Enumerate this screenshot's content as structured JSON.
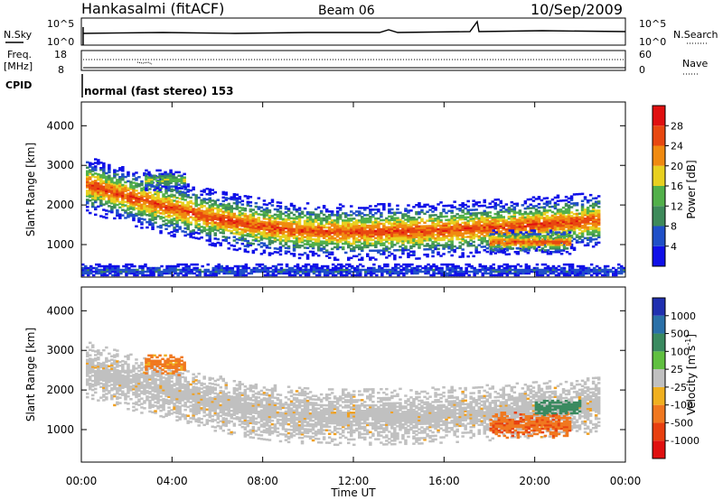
{
  "header": {
    "station": "Hankasalmi (fitACF)",
    "beam": "Beam 06",
    "date": "10/Sep/2009"
  },
  "top_panels": {
    "nsky_label": "N.Sky",
    "nsky_ticks": [
      "10^5",
      "10^0"
    ],
    "nsearch_label": "N.Search",
    "nsearch_ticks": [
      "10^5",
      "10^0"
    ],
    "freq_label_1": "Freq.",
    "freq_label_2": "[MHz]",
    "freq_ticks": [
      "18",
      "8"
    ],
    "nave_label": "Nave",
    "nave_ticks": [
      "60",
      "0"
    ],
    "cpid_label": "CPID",
    "cpid_value": "normal (fast stereo) 153"
  },
  "axes": {
    "xlabel": "Time UT",
    "x_ticks": [
      "00:00",
      "04:00",
      "08:00",
      "12:00",
      "16:00",
      "20:00",
      "00:00"
    ],
    "ylabel": "Slant Range [km]",
    "y_ticks": [
      "1000",
      "2000",
      "3000",
      "4000"
    ]
  },
  "power_colorbar": {
    "label": "Power [dB]",
    "ticks": [
      "4",
      "8",
      "12",
      "16",
      "20",
      "24",
      "28"
    ],
    "colors": [
      "#1010e8",
      "#2050c8",
      "#3e8a5a",
      "#52b04a",
      "#e8d020",
      "#f08a10",
      "#e84810",
      "#e01010"
    ]
  },
  "velocity_colorbar": {
    "label": "Velocity [m s",
    "label_sup": "-1",
    "label_end": "]",
    "ticks": [
      "1000",
      "500",
      "100",
      "25",
      "-25",
      "-100",
      "-500",
      "-1000"
    ],
    "colors": [
      "#2030b0",
      "#2a70a8",
      "#3a8a60",
      "#60c040",
      "#c0c0c0",
      "#f0b020",
      "#f07820",
      "#e84010",
      "#e01010"
    ]
  },
  "chart_data": {
    "type": "heatmap",
    "title": "Beam 06",
    "xlabel": "Time UT",
    "ylabel": "Slant Range [km]",
    "xlim": [
      0,
      24
    ],
    "ylim": [
      180,
      4600
    ],
    "ground_scatter_color": "#c0c0c0",
    "series": [
      {
        "name": "Power [dB]",
        "regions": [
          {
            "t_start": 0.2,
            "t_end": 22.8,
            "range_center_start": 2500,
            "range_center_mid": 1300,
            "range_center_end": 1600,
            "thickness": 700,
            "peak_db": 30
          },
          {
            "t_start": 2.8,
            "t_end": 4.6,
            "range_center": 2620,
            "thickness": 260,
            "peak_db": 20
          },
          {
            "t_start": 18.0,
            "t_end": 21.6,
            "range_center": 1050,
            "thickness": 300,
            "peak_db": 30
          },
          {
            "t_start": 0.0,
            "t_end": 24.0,
            "range_center": 320,
            "thickness": 200,
            "peak_db": 10
          }
        ]
      },
      {
        "name": "Velocity [m s-1]",
        "regions": [
          {
            "t_start": 0.2,
            "t_end": 22.8,
            "range_center_start": 2500,
            "range_center_mid": 1300,
            "range_center_end": 1600,
            "thickness": 700,
            "velocity": 0,
            "ground_scatter": true
          },
          {
            "t_start": 2.8,
            "t_end": 4.6,
            "range_center": 2620,
            "thickness": 260,
            "velocity": -150
          },
          {
            "t_start": 18.0,
            "t_end": 21.6,
            "range_center": 1100,
            "thickness": 320,
            "velocity": -400
          },
          {
            "t_start": 20.0,
            "t_end": 22.0,
            "range_center": 1550,
            "thickness": 200,
            "velocity": 300
          }
        ]
      }
    ]
  }
}
